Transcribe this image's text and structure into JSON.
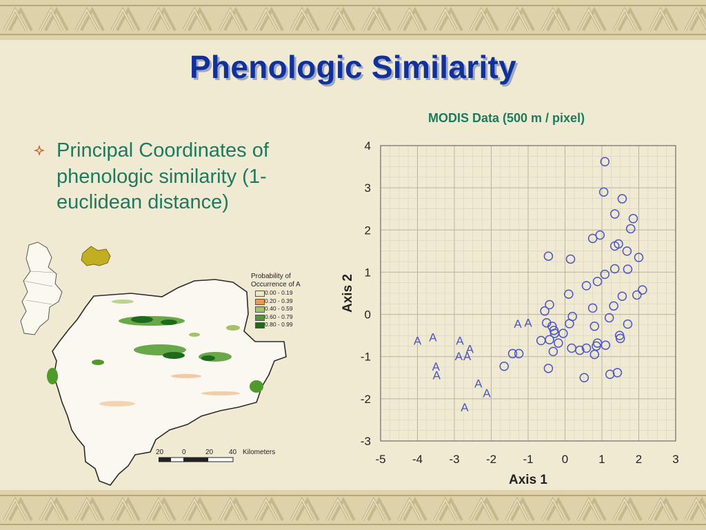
{
  "slide": {
    "title": "Phenologic Similarity",
    "modis_caption": "MODIS Data (500 m / pixel)",
    "bullet_text_lines": [
      "Principal Coordinates of",
      "phenologic similarity (1-",
      "euclidean distance)"
    ]
  },
  "map": {
    "legend_title_lines": [
      "Probability of",
      "Occurrence of A"
    ],
    "legend_items": [
      {
        "label": "0.00 - 0.19",
        "color": "#ede7c6"
      },
      {
        "label": "0.20 - 0.39",
        "color": "#e99a53"
      },
      {
        "label": "0.40 - 0.59",
        "color": "#a4c267"
      },
      {
        "label": "0.60 - 0.79",
        "color": "#4f9a2b"
      },
      {
        "label": "0.80 - 0.99",
        "color": "#1d6a1c"
      }
    ],
    "scale_labels": [
      "20",
      "0",
      "20",
      "40",
      "Kilometers"
    ]
  },
  "chart_data": {
    "type": "scatter",
    "title": "",
    "xlabel": "Axis 1",
    "ylabel": "Axis 2",
    "xlim": [
      -5,
      3
    ],
    "ylim": [
      -3,
      4
    ],
    "xticks": [
      -5,
      -4,
      -3,
      -2,
      -1,
      0,
      1,
      2,
      3
    ],
    "yticks": [
      -3,
      -2,
      -1,
      0,
      1,
      2,
      3,
      4
    ],
    "minor_grid_step": 0.25,
    "grid": true,
    "series": [
      {
        "marker": "circle",
        "color": "#4a55c8",
        "points": [
          [
            1.08,
            3.62
          ],
          [
            1.05,
            2.9
          ],
          [
            1.55,
            2.74
          ],
          [
            1.35,
            2.38
          ],
          [
            1.85,
            2.27
          ],
          [
            1.78,
            2.03
          ],
          [
            0.95,
            1.88
          ],
          [
            0.75,
            1.8
          ],
          [
            1.45,
            1.67
          ],
          [
            1.35,
            1.62
          ],
          [
            1.68,
            1.5
          ],
          [
            2.0,
            1.35
          ],
          [
            -0.45,
            1.38
          ],
          [
            0.15,
            1.31
          ],
          [
            1.35,
            1.08
          ],
          [
            1.7,
            1.07
          ],
          [
            1.08,
            0.95
          ],
          [
            0.88,
            0.78
          ],
          [
            0.58,
            0.68
          ],
          [
            2.1,
            0.58
          ],
          [
            1.95,
            0.46
          ],
          [
            1.55,
            0.43
          ],
          [
            0.1,
            0.48
          ],
          [
            1.32,
            0.2
          ],
          [
            -0.42,
            0.23
          ],
          [
            0.75,
            0.15
          ],
          [
            -0.55,
            0.08
          ],
          [
            1.2,
            -0.08
          ],
          [
            0.2,
            -0.05
          ],
          [
            -0.5,
            -0.2
          ],
          [
            0.12,
            -0.22
          ],
          [
            -0.35,
            -0.28
          ],
          [
            -0.3,
            -0.38
          ],
          [
            0.8,
            -0.28
          ],
          [
            1.7,
            -0.23
          ],
          [
            -0.28,
            -0.45
          ],
          [
            -0.05,
            -0.45
          ],
          [
            1.48,
            -0.5
          ],
          [
            -0.42,
            -0.6
          ],
          [
            1.5,
            -0.57
          ],
          [
            -0.65,
            -0.62
          ],
          [
            -0.18,
            -0.68
          ],
          [
            0.88,
            -0.68
          ],
          [
            0.85,
            -0.75
          ],
          [
            1.1,
            -0.73
          ],
          [
            0.18,
            -0.8
          ],
          [
            0.58,
            -0.8
          ],
          [
            0.4,
            -0.85
          ],
          [
            -0.32,
            -0.88
          ],
          [
            0.8,
            -0.95
          ],
          [
            -1.25,
            -0.93
          ],
          [
            -1.42,
            -0.93
          ],
          [
            -1.65,
            -1.23
          ],
          [
            -0.45,
            -1.28
          ],
          [
            1.42,
            -1.38
          ],
          [
            1.22,
            -1.42
          ],
          [
            0.52,
            -1.5
          ]
        ]
      },
      {
        "marker": "A",
        "color": "#4a55c8",
        "points": [
          [
            -4.0,
            -0.6
          ],
          [
            -3.58,
            -0.52
          ],
          [
            -2.85,
            -0.6
          ],
          [
            -2.58,
            -0.8
          ],
          [
            -2.88,
            -0.97
          ],
          [
            -2.65,
            -0.97
          ],
          [
            -3.5,
            -1.22
          ],
          [
            -3.48,
            -1.42
          ],
          [
            -2.35,
            -1.62
          ],
          [
            -2.12,
            -1.85
          ],
          [
            -2.72,
            -2.18
          ],
          [
            -1.28,
            -0.2
          ],
          [
            -1.0,
            -0.18
          ]
        ]
      }
    ]
  }
}
